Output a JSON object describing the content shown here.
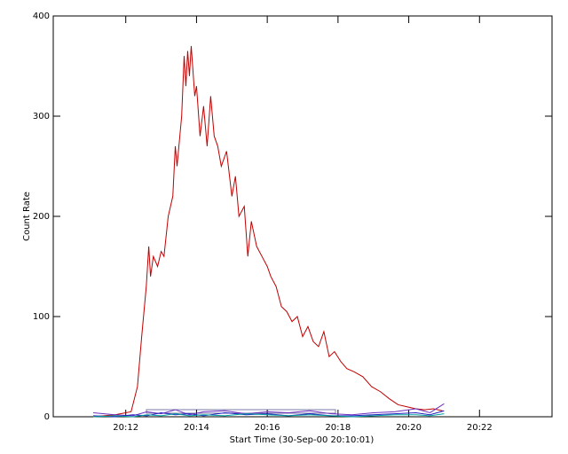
{
  "chart_data": {
    "type": "line",
    "xlabel": "Start Time (30-Sep-00 20:10:01)",
    "ylabel": "Count Rate",
    "xlim": [
      9.95,
      24.05
    ],
    "xticks": [
      {
        "value": 12,
        "label": "20:12"
      },
      {
        "value": 14,
        "label": "20:14"
      },
      {
        "value": 16,
        "label": "20:16"
      },
      {
        "value": 18,
        "label": "20:18"
      },
      {
        "value": 20,
        "label": "20:20"
      },
      {
        "value": 22,
        "label": "20:22"
      }
    ],
    "ylim": [
      0,
      400
    ],
    "yticks": [
      0,
      100,
      200,
      300,
      400
    ],
    "series": [
      {
        "color": "#c00000",
        "x": [
          11.08,
          11.7,
          12.15,
          12.33,
          12.45,
          12.58,
          12.65,
          12.7,
          12.78,
          12.9,
          13.0,
          13.08,
          13.2,
          13.33,
          13.4,
          13.45,
          13.58,
          13.65,
          13.7,
          13.75,
          13.8,
          13.85,
          13.9,
          13.95,
          14.0,
          14.1,
          14.2,
          14.3,
          14.4,
          14.5,
          14.6,
          14.7,
          14.85,
          15.0,
          15.1,
          15.2,
          15.35,
          15.45,
          15.55,
          15.7,
          15.85,
          16.0,
          16.1,
          16.25,
          16.4,
          16.55,
          16.7,
          16.85,
          17.0,
          17.15,
          17.3,
          17.45,
          17.6,
          17.75,
          17.9,
          18.08,
          18.25,
          18.45,
          18.7,
          18.95,
          19.2,
          19.45,
          19.7,
          19.95,
          20.2,
          20.45,
          20.7,
          20.95
        ],
        "values": [
          0,
          2,
          5,
          30,
          80,
          130,
          170,
          140,
          160,
          150,
          165,
          160,
          200,
          220,
          270,
          250,
          300,
          360,
          330,
          365,
          340,
          370,
          345,
          320,
          330,
          280,
          310,
          270,
          320,
          280,
          270,
          250,
          265,
          220,
          240,
          200,
          210,
          160,
          195,
          170,
          160,
          150,
          140,
          130,
          110,
          105,
          95,
          100,
          80,
          90,
          75,
          70,
          85,
          60,
          65,
          55,
          48,
          45,
          40,
          30,
          25,
          18,
          12,
          10,
          8,
          7,
          8,
          6
        ]
      },
      {
        "color": "#7030c0",
        "x": [
          11.08,
          11.7,
          12.2,
          12.6,
          13.0,
          13.4,
          13.8,
          14.2,
          14.8,
          15.4,
          16.0,
          16.6,
          17.2,
          17.8,
          18.4,
          19.0,
          19.6,
          20.2,
          20.6,
          21.0
        ],
        "values": [
          4,
          2,
          1,
          5,
          3,
          7,
          2,
          5,
          6,
          3,
          5,
          4,
          6,
          3,
          2,
          4,
          5,
          8,
          4,
          13
        ]
      },
      {
        "color": "#2020c0",
        "x": [
          11.08,
          11.7,
          12.2,
          12.6,
          13.0,
          13.4,
          13.8,
          14.2,
          14.8,
          15.4,
          16.0,
          16.6,
          17.2,
          17.8,
          18.4,
          19.0,
          19.6,
          20.2,
          20.6,
          21.0
        ],
        "values": [
          1,
          0,
          2,
          1,
          4,
          2,
          3,
          1,
          4,
          2,
          3,
          1,
          3,
          1,
          1,
          2,
          3,
          4,
          2,
          6
        ]
      },
      {
        "color": "#00a0a0",
        "x": [
          11.08,
          11.7,
          12.2,
          12.6,
          13.0,
          13.4,
          13.8,
          14.2,
          14.8,
          15.4,
          16.0,
          16.6,
          17.2,
          17.8,
          18.4,
          19.0,
          19.6,
          20.2,
          20.6,
          21.0
        ],
        "values": [
          0,
          1,
          0,
          2,
          1,
          3,
          1,
          2,
          1,
          3,
          2,
          1,
          2,
          1,
          0,
          1,
          2,
          2,
          1,
          3
        ]
      }
    ]
  }
}
